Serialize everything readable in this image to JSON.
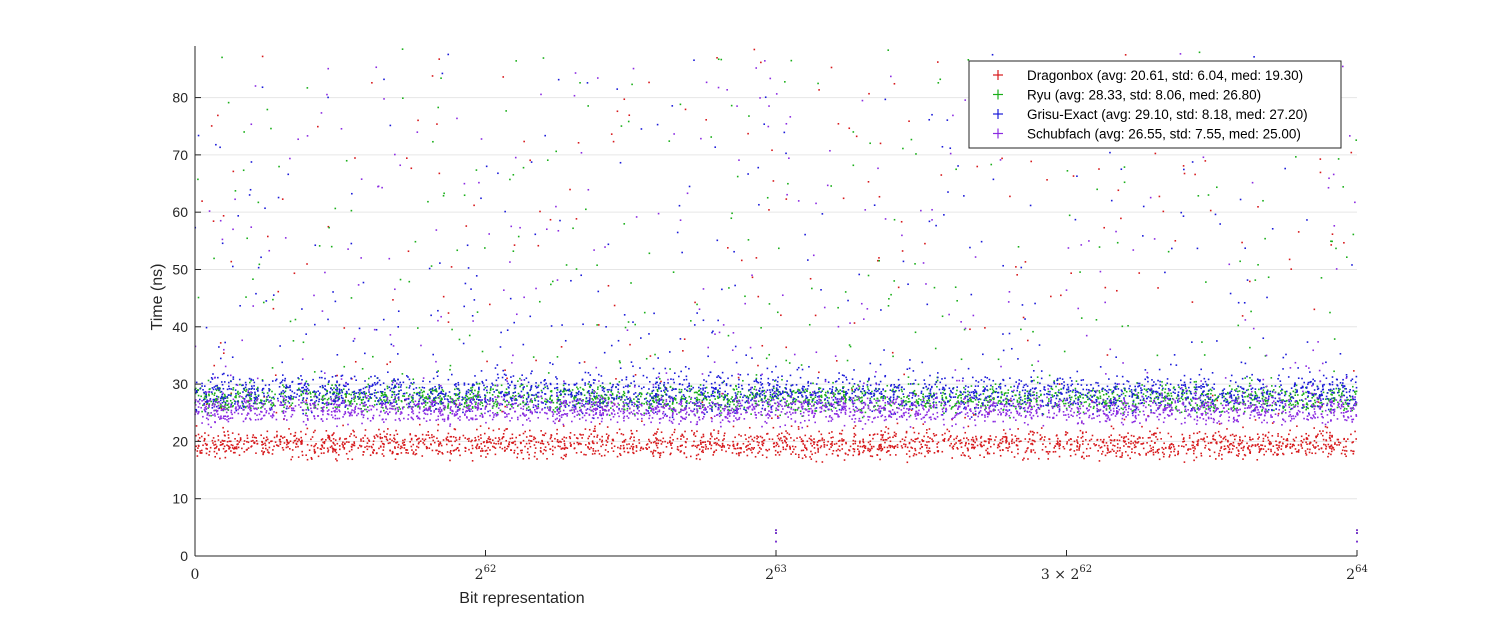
{
  "chart_data": {
    "type": "scatter",
    "title": "",
    "xlabel": "Bit representation",
    "ylabel": "Time (ns)",
    "xlim": [
      0,
      18446744073709551616
    ],
    "ylim": [
      0,
      89
    ],
    "grid": "horizontal",
    "legend_position": "top-right",
    "yticks": [
      0,
      10,
      20,
      30,
      40,
      50,
      60,
      70,
      80
    ],
    "xtick_labels": [
      {
        "value": 0,
        "base": "0",
        "prefix": "",
        "exp": ""
      },
      {
        "value": 4611686018427387904,
        "base": "2",
        "prefix": "",
        "exp": "62"
      },
      {
        "value": 9223372036854775808,
        "base": "2",
        "prefix": "",
        "exp": "63"
      },
      {
        "value": 13835058055282163712,
        "base": "2",
        "prefix": "3 × ",
        "exp": "62"
      },
      {
        "value": 18446744073709551616,
        "base": "2",
        "prefix": "",
        "exp": "64"
      }
    ],
    "series": [
      {
        "name": "Dragonbox",
        "legend": "Dragonbox (avg: 20.61, std: 6.04, med: 19.30)",
        "color": "#d7191c",
        "avg": 20.61,
        "std": 6.04,
        "med": 19.3,
        "band": [
          16.5,
          22.5
        ]
      },
      {
        "name": "Ryu",
        "legend": "Ryu (avg: 28.33, std: 8.06, med: 26.80)",
        "color": "#1aaf1a",
        "avg": 28.33,
        "std": 8.06,
        "med": 26.8,
        "band": [
          24.5,
          30.5
        ]
      },
      {
        "name": "Grisu-Exact",
        "legend": "Grisu-Exact (avg: 29.10, std: 8.18, med: 27.20)",
        "color": "#1a1ad9",
        "avg": 29.1,
        "std": 8.18,
        "med": 27.2,
        "band": [
          24.5,
          32.5
        ]
      },
      {
        "name": "Schubfach",
        "legend": "Schubfach (avg: 26.55, std: 7.55, med: 25.00)",
        "color": "#8b2be2",
        "avg": 26.55,
        "std": 7.55,
        "med": 25.0,
        "band": [
          22.5,
          28.5
        ]
      }
    ]
  }
}
